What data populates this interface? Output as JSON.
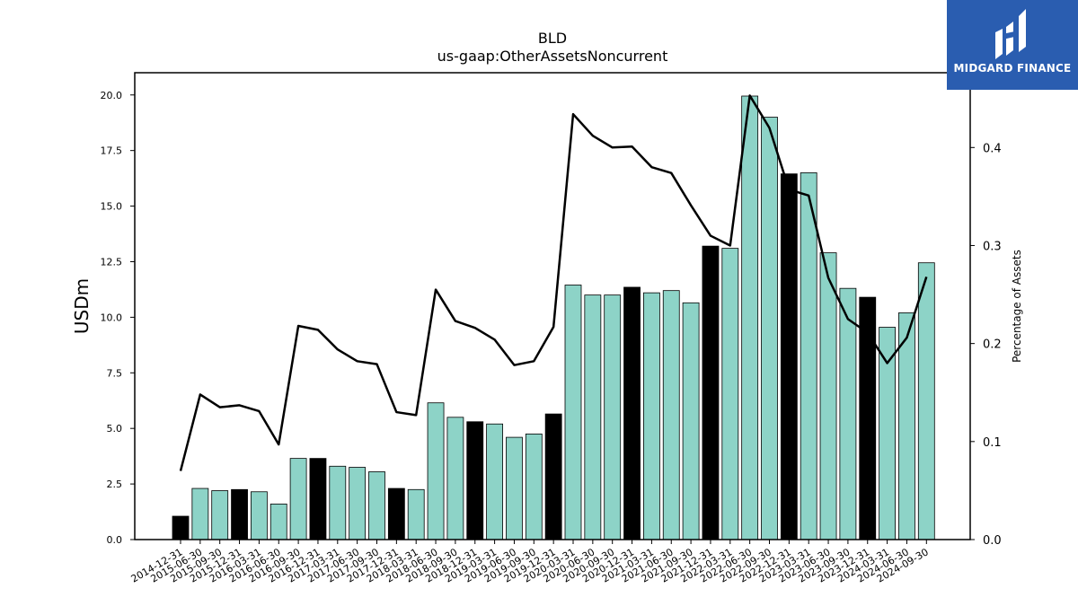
{
  "chart_data": {
    "type": "bar",
    "title": "BLD",
    "subtitle": "us-gaap:OtherAssetsNoncurrent",
    "ylabel": "USDm",
    "y2label": "Percentage of Assets",
    "ylim": [
      0,
      21
    ],
    "y2lim": [
      0,
      0.4763
    ],
    "yticks": [
      "0.0",
      "2.5",
      "5.0",
      "7.5",
      "10.0",
      "12.5",
      "15.0",
      "17.5",
      "20.0"
    ],
    "y2ticks": [
      "0.0",
      "0.1",
      "0.2",
      "0.3",
      "0.4"
    ],
    "categories": [
      "2014-12-31",
      "2015-06-30",
      "2015-09-30",
      "2015-12-31",
      "2016-03-31",
      "2016-06-30",
      "2016-09-30",
      "2016-12-31",
      "2017-03-31",
      "2017-06-30",
      "2017-09-30",
      "2017-12-31",
      "2018-03-31",
      "2018-06-30",
      "2018-09-30",
      "2018-12-31",
      "2019-03-31",
      "2019-06-30",
      "2019-09-30",
      "2019-12-31",
      "2020-03-31",
      "2020-06-30",
      "2020-09-30",
      "2020-12-31",
      "2021-03-31",
      "2021-06-30",
      "2021-09-30",
      "2021-12-31",
      "2022-03-31",
      "2022-06-30",
      "2022-09-30",
      "2022-12-31",
      "2023-03-31",
      "2023-06-30",
      "2023-09-30",
      "2023-12-31",
      "2024-03-31",
      "2024-06-30",
      "2024-09-30"
    ],
    "series": [
      {
        "kind": "bar",
        "values": [
          1.05,
          2.3,
          2.2,
          2.25,
          2.15,
          1.6,
          3.65,
          3.65,
          3.3,
          3.25,
          3.05,
          2.3,
          2.25,
          6.15,
          5.5,
          5.3,
          5.2,
          4.6,
          4.75,
          5.65,
          11.45,
          11.0,
          11.0,
          11.35,
          11.1,
          11.2,
          10.65,
          13.2,
          13.1,
          19.95,
          19.0,
          16.45,
          16.5,
          12.9,
          11.3,
          10.9,
          9.55,
          10.2,
          12.45
        ],
        "fiscal_year_end": [
          true,
          false,
          false,
          true,
          false,
          false,
          false,
          true,
          false,
          false,
          false,
          true,
          false,
          false,
          false,
          true,
          false,
          false,
          false,
          true,
          false,
          false,
          false,
          true,
          false,
          false,
          false,
          true,
          false,
          false,
          false,
          true,
          false,
          false,
          false,
          true,
          false,
          false,
          false
        ]
      },
      {
        "kind": "line",
        "axis": "right",
        "values": [
          0.07,
          0.148,
          0.135,
          0.137,
          0.131,
          0.097,
          0.218,
          0.214,
          0.194,
          0.182,
          0.179,
          0.13,
          0.127,
          0.255,
          0.223,
          0.216,
          0.204,
          0.178,
          0.182,
          0.217,
          0.434,
          0.412,
          0.4,
          0.401,
          0.38,
          0.374,
          0.341,
          0.31,
          0.3,
          0.453,
          0.42,
          0.357,
          0.351,
          0.267,
          0.225,
          0.211,
          0.18,
          0.206,
          0.268
        ]
      }
    ],
    "grid": false,
    "colors": {
      "bar": "#8dd3c7",
      "bar_highlight": "#000000",
      "line": "#000000"
    }
  },
  "logo": {
    "text": "MIDGARD FINANCE",
    "background": "#2a5db0"
  }
}
